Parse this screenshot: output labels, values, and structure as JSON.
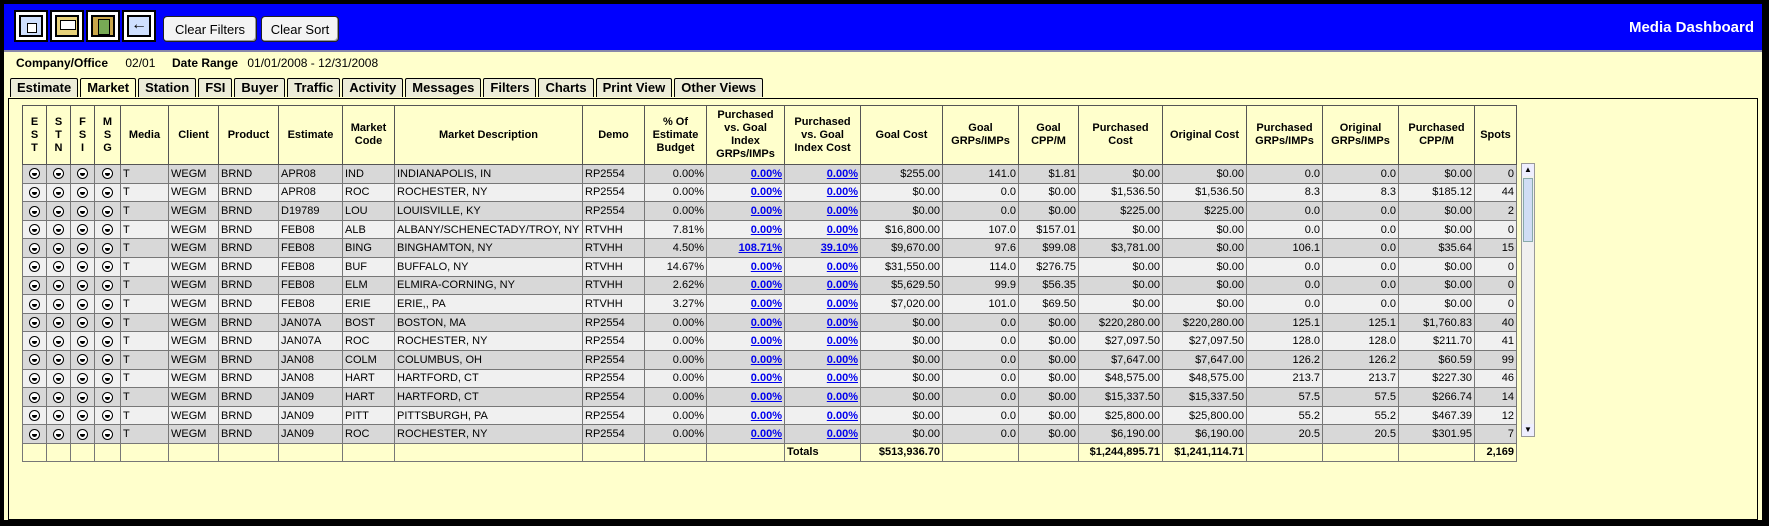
{
  "app": {
    "title": "Media Dashboard"
  },
  "toolbar": {
    "icons": [
      "home-icon",
      "print-icon",
      "export-icon",
      "back-icon"
    ],
    "clear_filters": "Clear Filters",
    "clear_sort": "Clear Sort"
  },
  "info": {
    "company_label": "Company/Office",
    "company_value": "02/01",
    "date_label": "Date Range",
    "date_value": "01/01/2008 - 12/31/2008"
  },
  "tabs": [
    "Estimate",
    "Market",
    "Station",
    "FSI",
    "Buyer",
    "Traffic",
    "Activity",
    "Messages",
    "Filters",
    "Charts",
    "Print View",
    "Other Views"
  ],
  "active_tab": "Market",
  "columns": [
    "E S T",
    "S T N",
    "F S I",
    "M S G",
    "Media",
    "Client",
    "Product",
    "Estimate",
    "Market Code",
    "Market Description",
    "Demo",
    "% Of Estimate Budget",
    "Purchased vs. Goal Index GRPs/IMPs",
    "Purchased vs. Goal Index Cost",
    "Goal Cost",
    "Goal GRPs/IMPs",
    "Goal CPP/M",
    "Purchased Cost",
    "Original Cost",
    "Purchased GRPs/IMPs",
    "Original GRPs/IMPs",
    "Purchased CPP/M",
    "Spots"
  ],
  "rows": [
    [
      "T",
      "WEGM",
      "BRND",
      "APR08",
      "IND",
      "INDIANAPOLIS, IN",
      "RP2554",
      "0.00%",
      "0.00%",
      "0.00%",
      "$255.00",
      "141.0",
      "$1.81",
      "$0.00",
      "$0.00",
      "0.0",
      "0.0",
      "$0.00",
      "0"
    ],
    [
      "T",
      "WEGM",
      "BRND",
      "APR08",
      "ROC",
      "ROCHESTER, NY",
      "RP2554",
      "0.00%",
      "0.00%",
      "0.00%",
      "$0.00",
      "0.0",
      "$0.00",
      "$1,536.50",
      "$1,536.50",
      "8.3",
      "8.3",
      "$185.12",
      "44"
    ],
    [
      "T",
      "WEGM",
      "BRND",
      "D19789",
      "LOU",
      "LOUISVILLE, KY",
      "RP2554",
      "0.00%",
      "0.00%",
      "0.00%",
      "$0.00",
      "0.0",
      "$0.00",
      "$225.00",
      "$225.00",
      "0.0",
      "0.0",
      "$0.00",
      "2"
    ],
    [
      "T",
      "WEGM",
      "BRND",
      "FEB08",
      "ALB",
      "ALBANY/SCHENECTADY/TROY, NY",
      "RTVHH",
      "7.81%",
      "0.00%",
      "0.00%",
      "$16,800.00",
      "107.0",
      "$157.01",
      "$0.00",
      "$0.00",
      "0.0",
      "0.0",
      "$0.00",
      "0"
    ],
    [
      "T",
      "WEGM",
      "BRND",
      "FEB08",
      "BING",
      "BINGHAMTON, NY",
      "RTVHH",
      "4.50%",
      "108.71%",
      "39.10%",
      "$9,670.00",
      "97.6",
      "$99.08",
      "$3,781.00",
      "$0.00",
      "106.1",
      "0.0",
      "$35.64",
      "15"
    ],
    [
      "T",
      "WEGM",
      "BRND",
      "FEB08",
      "BUF",
      "BUFFALO, NY",
      "RTVHH",
      "14.67%",
      "0.00%",
      "0.00%",
      "$31,550.00",
      "114.0",
      "$276.75",
      "$0.00",
      "$0.00",
      "0.0",
      "0.0",
      "$0.00",
      "0"
    ],
    [
      "T",
      "WEGM",
      "BRND",
      "FEB08",
      "ELM",
      "ELMIRA-CORNING, NY",
      "RTVHH",
      "2.62%",
      "0.00%",
      "0.00%",
      "$5,629.50",
      "99.9",
      "$56.35",
      "$0.00",
      "$0.00",
      "0.0",
      "0.0",
      "$0.00",
      "0"
    ],
    [
      "T",
      "WEGM",
      "BRND",
      "FEB08",
      "ERIE",
      "ERIE,, PA",
      "RTVHH",
      "3.27%",
      "0.00%",
      "0.00%",
      "$7,020.00",
      "101.0",
      "$69.50",
      "$0.00",
      "$0.00",
      "0.0",
      "0.0",
      "$0.00",
      "0"
    ],
    [
      "T",
      "WEGM",
      "BRND",
      "JAN07A",
      "BOST",
      "BOSTON, MA",
      "RP2554",
      "0.00%",
      "0.00%",
      "0.00%",
      "$0.00",
      "0.0",
      "$0.00",
      "$220,280.00",
      "$220,280.00",
      "125.1",
      "125.1",
      "$1,760.83",
      "40"
    ],
    [
      "T",
      "WEGM",
      "BRND",
      "JAN07A",
      "ROC",
      "ROCHESTER, NY",
      "RP2554",
      "0.00%",
      "0.00%",
      "0.00%",
      "$0.00",
      "0.0",
      "$0.00",
      "$27,097.50",
      "$27,097.50",
      "128.0",
      "128.0",
      "$211.70",
      "41"
    ],
    [
      "T",
      "WEGM",
      "BRND",
      "JAN08",
      "COLM",
      "COLUMBUS, OH",
      "RP2554",
      "0.00%",
      "0.00%",
      "0.00%",
      "$0.00",
      "0.0",
      "$0.00",
      "$7,647.00",
      "$7,647.00",
      "126.2",
      "126.2",
      "$60.59",
      "99"
    ],
    [
      "T",
      "WEGM",
      "BRND",
      "JAN08",
      "HART",
      "HARTFORD, CT",
      "RP2554",
      "0.00%",
      "0.00%",
      "0.00%",
      "$0.00",
      "0.0",
      "$0.00",
      "$48,575.00",
      "$48,575.00",
      "213.7",
      "213.7",
      "$227.30",
      "46"
    ],
    [
      "T",
      "WEGM",
      "BRND",
      "JAN09",
      "HART",
      "HARTFORD, CT",
      "RP2554",
      "0.00%",
      "0.00%",
      "0.00%",
      "$0.00",
      "0.0",
      "$0.00",
      "$15,337.50",
      "$15,337.50",
      "57.5",
      "57.5",
      "$266.74",
      "14"
    ],
    [
      "T",
      "WEGM",
      "BRND",
      "JAN09",
      "PITT",
      "PITTSBURGH, PA",
      "RP2554",
      "0.00%",
      "0.00%",
      "0.00%",
      "$0.00",
      "0.0",
      "$0.00",
      "$25,800.00",
      "$25,800.00",
      "55.2",
      "55.2",
      "$467.39",
      "12"
    ],
    [
      "T",
      "WEGM",
      "BRND",
      "JAN09",
      "ROC",
      "ROCHESTER, NY",
      "RP2554",
      "0.00%",
      "0.00%",
      "0.00%",
      "$0.00",
      "0.0",
      "$0.00",
      "$6,190.00",
      "$6,190.00",
      "20.5",
      "20.5",
      "$301.95",
      "7"
    ]
  ],
  "totals": {
    "label": "Totals",
    "goal_cost": "$513,936.70",
    "purchased_cost": "$1,244,895.71",
    "original_cost": "$1,241,114.71",
    "spots": "2,169"
  }
}
